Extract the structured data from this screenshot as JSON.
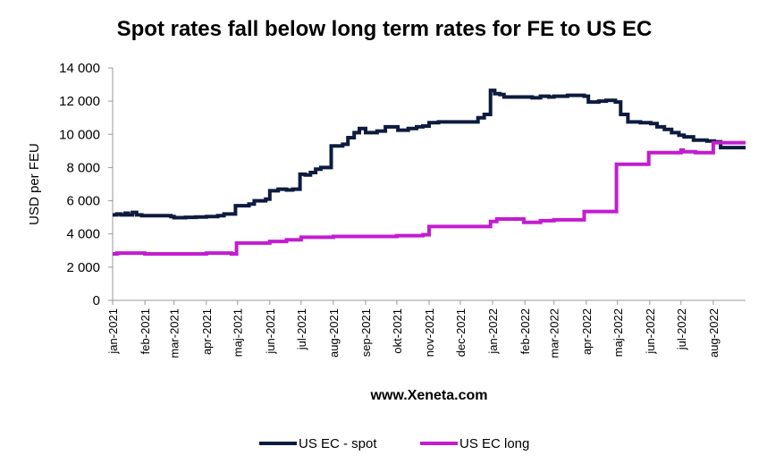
{
  "chart_data": {
    "type": "line",
    "title": "Spot rates fall below long term rates for FE to US EC",
    "xlabel": "www.Xeneta.com",
    "ylabel": "USD per FEU",
    "ylim": [
      0,
      14000
    ],
    "yticks": [
      0,
      2000,
      4000,
      6000,
      8000,
      10000,
      12000,
      14000
    ],
    "ytick_labels": [
      "0",
      "2 000",
      "4 000",
      "6 000",
      "8 000",
      "10 000",
      "12 000",
      "14 000"
    ],
    "xlim": [
      "2021-01-01",
      "2022-09-01"
    ],
    "x_tick_labels": [
      "jan-2021",
      "feb-2021",
      "mar-2021",
      "apr-2021",
      "maj-2021",
      "jun-2021",
      "jul-2021",
      "aug-2021",
      "sep-2021",
      "okt-2021",
      "nov-2021",
      "dec-2021",
      "jan-2022",
      "feb-2022",
      "mar-2022",
      "apr-2022",
      "maj-2022",
      "jun-2022",
      "jul-2022",
      "aug-2022"
    ],
    "x_tick_dates": [
      "2021-01-01",
      "2021-02-01",
      "2021-03-01",
      "2021-04-01",
      "2021-05-01",
      "2021-06-01",
      "2021-07-01",
      "2021-08-01",
      "2021-09-01",
      "2021-10-01",
      "2021-11-01",
      "2021-12-01",
      "2022-01-01",
      "2022-02-01",
      "2022-03-01",
      "2022-04-01",
      "2022-05-01",
      "2022-06-01",
      "2022-07-01",
      "2022-08-01"
    ],
    "grid": false,
    "legend_position": "bottom",
    "series": [
      {
        "name": "US EC - spot",
        "color": "#0d1b3e",
        "step": true,
        "points": [
          [
            "2021-01-01",
            5150
          ],
          [
            "2021-01-05",
            5200
          ],
          [
            "2021-01-09",
            5150
          ],
          [
            "2021-01-13",
            5250
          ],
          [
            "2021-01-16",
            5150
          ],
          [
            "2021-01-20",
            5300
          ],
          [
            "2021-01-24",
            5150
          ],
          [
            "2021-01-29",
            5100
          ],
          [
            "2021-02-26",
            5050
          ],
          [
            "2021-03-01",
            4980
          ],
          [
            "2021-03-12",
            5000
          ],
          [
            "2021-03-22",
            5020
          ],
          [
            "2021-04-01",
            5050
          ],
          [
            "2021-04-12",
            5100
          ],
          [
            "2021-04-18",
            5200
          ],
          [
            "2021-04-29",
            5700
          ],
          [
            "2021-05-12",
            5800
          ],
          [
            "2021-05-17",
            6000
          ],
          [
            "2021-05-28",
            6100
          ],
          [
            "2021-06-01",
            6600
          ],
          [
            "2021-06-09",
            6700
          ],
          [
            "2021-06-17",
            6650
          ],
          [
            "2021-06-23",
            6700
          ],
          [
            "2021-06-30",
            7600
          ],
          [
            "2021-07-05",
            7550
          ],
          [
            "2021-07-10",
            7700
          ],
          [
            "2021-07-15",
            7900
          ],
          [
            "2021-07-20",
            8000
          ],
          [
            "2021-07-30",
            9300
          ],
          [
            "2021-08-10",
            9400
          ],
          [
            "2021-08-15",
            9800
          ],
          [
            "2021-08-21",
            10100
          ],
          [
            "2021-08-26",
            10350
          ],
          [
            "2021-09-01",
            10100
          ],
          [
            "2021-09-12",
            10200
          ],
          [
            "2021-09-20",
            10450
          ],
          [
            "2021-10-02",
            10250
          ],
          [
            "2021-10-12",
            10350
          ],
          [
            "2021-10-20",
            10450
          ],
          [
            "2021-10-26",
            10500
          ],
          [
            "2021-11-01",
            10700
          ],
          [
            "2021-11-10",
            10750
          ],
          [
            "2021-11-20",
            10750
          ],
          [
            "2021-12-01",
            10750
          ],
          [
            "2021-12-14",
            10750
          ],
          [
            "2021-12-18",
            11000
          ],
          [
            "2021-12-24",
            11200
          ],
          [
            "2021-12-30",
            12650
          ],
          [
            "2022-01-03",
            12450
          ],
          [
            "2022-01-08",
            12400
          ],
          [
            "2022-01-12",
            12250
          ],
          [
            "2022-01-20",
            12250
          ],
          [
            "2022-02-01",
            12250
          ],
          [
            "2022-02-08",
            12200
          ],
          [
            "2022-02-16",
            12300
          ],
          [
            "2022-02-24",
            12250
          ],
          [
            "2022-03-01",
            12300
          ],
          [
            "2022-03-14",
            12350
          ],
          [
            "2022-03-30",
            12300
          ],
          [
            "2022-04-03",
            11950
          ],
          [
            "2022-04-13",
            12000
          ],
          [
            "2022-04-20",
            12050
          ],
          [
            "2022-04-29",
            11950
          ],
          [
            "2022-05-04",
            11200
          ],
          [
            "2022-05-11",
            10750
          ],
          [
            "2022-05-23",
            10700
          ],
          [
            "2022-06-02",
            10650
          ],
          [
            "2022-06-08",
            10450
          ],
          [
            "2022-06-15",
            10300
          ],
          [
            "2022-06-22",
            10100
          ],
          [
            "2022-06-29",
            9950
          ],
          [
            "2022-07-04",
            9850
          ],
          [
            "2022-07-13",
            9650
          ],
          [
            "2022-07-26",
            9600
          ],
          [
            "2022-08-02",
            9550
          ],
          [
            "2022-08-08",
            9200
          ],
          [
            "2022-08-23",
            9200
          ]
        ]
      },
      {
        "name": "US EC long",
        "color": "#c21dcf",
        "step": true,
        "points": [
          [
            "2021-01-01",
            2800
          ],
          [
            "2021-01-05",
            2850
          ],
          [
            "2021-02-01",
            2800
          ],
          [
            "2021-03-22",
            2800
          ],
          [
            "2021-04-01",
            2850
          ],
          [
            "2021-04-25",
            2800
          ],
          [
            "2021-04-30",
            3450
          ],
          [
            "2021-06-01",
            3550
          ],
          [
            "2021-06-17",
            3650
          ],
          [
            "2021-07-01",
            3800
          ],
          [
            "2021-07-15",
            3800
          ],
          [
            "2021-08-01",
            3850
          ],
          [
            "2021-10-01",
            3900
          ],
          [
            "2021-10-26",
            3950
          ],
          [
            "2021-11-01",
            4450
          ],
          [
            "2021-12-30",
            4750
          ],
          [
            "2022-01-05",
            4900
          ],
          [
            "2022-01-31",
            4700
          ],
          [
            "2022-02-16",
            4800
          ],
          [
            "2022-03-01",
            4850
          ],
          [
            "2022-03-30",
            5350
          ],
          [
            "2022-04-30",
            8200
          ],
          [
            "2022-05-31",
            8900
          ],
          [
            "2022-07-01",
            9050
          ],
          [
            "2022-07-03",
            8950
          ],
          [
            "2022-07-15",
            8900
          ],
          [
            "2022-08-01",
            9500
          ],
          [
            "2022-08-23",
            9500
          ]
        ]
      }
    ]
  }
}
